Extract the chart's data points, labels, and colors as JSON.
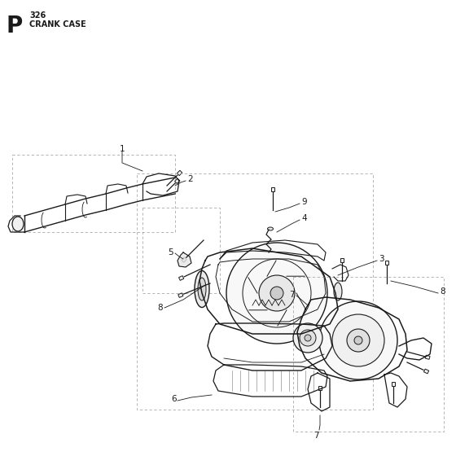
{
  "title_letter": "P",
  "title_number": "326",
  "title_text": "CRANK CASE",
  "bg_color": "#ffffff",
  "line_color": "#1a1a1a",
  "dashed_color": "#aaaaaa",
  "label_fontsize": 7.5,
  "title_p_fontsize": 20,
  "title_num_fontsize": 7,
  "title_sub_fontsize": 7,
  "fig_w": 5.6,
  "fig_h": 5.6,
  "dpi": 100
}
